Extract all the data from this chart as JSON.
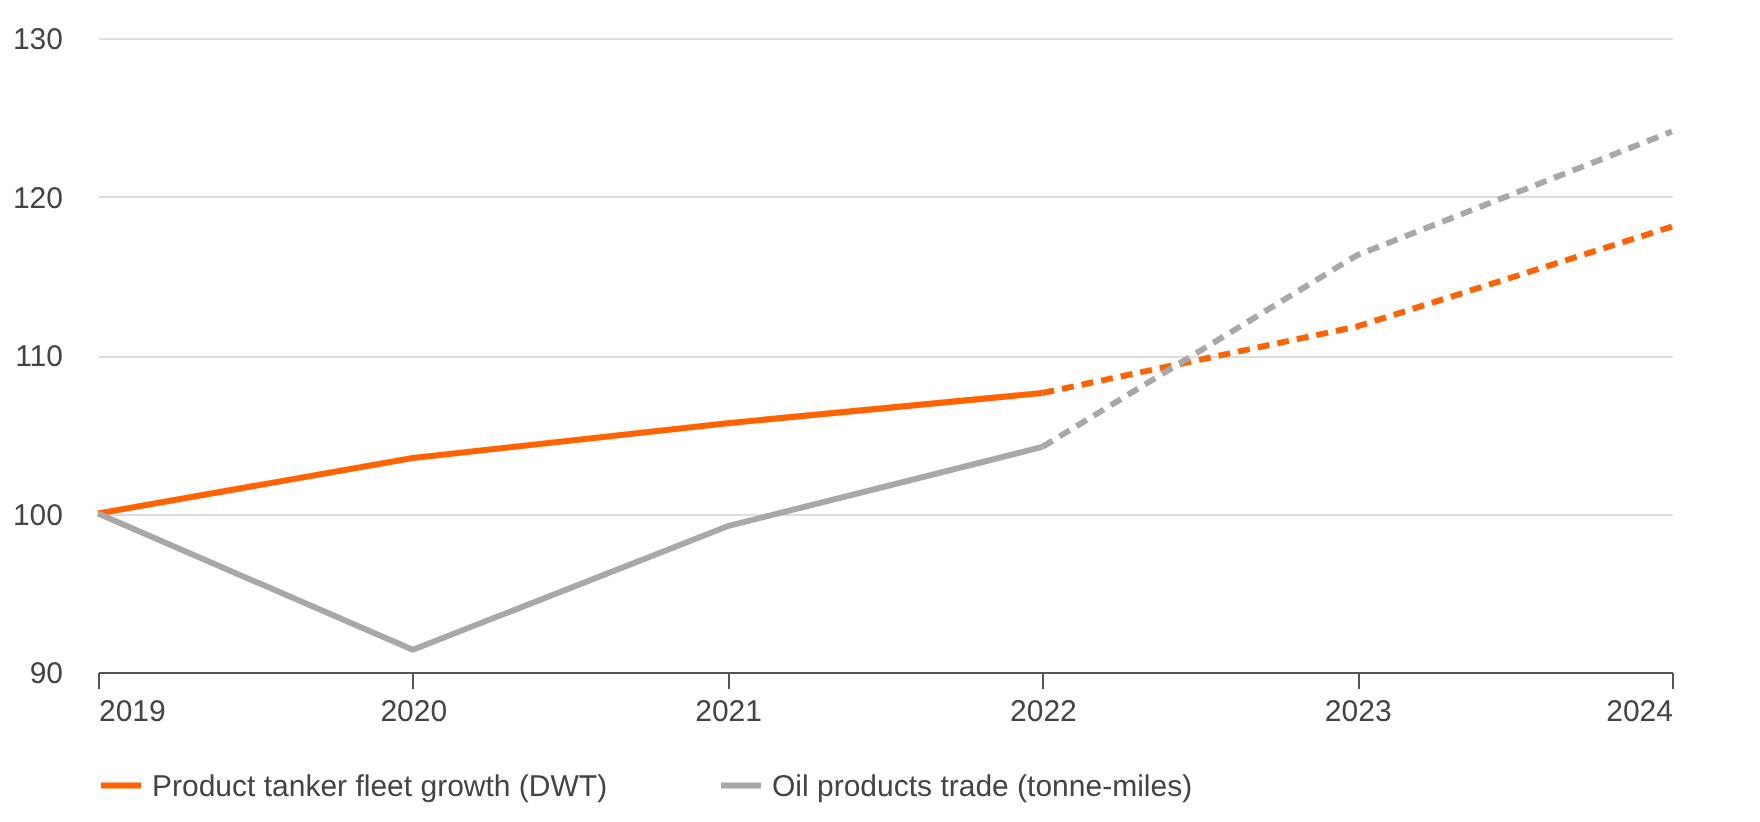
{
  "chart_data": {
    "type": "line",
    "x": [
      2019,
      2020,
      2021,
      2022,
      2023,
      2024
    ],
    "series": [
      {
        "name": "Product tanker fleet growth (DWT)",
        "color": "#ff6200",
        "values": [
          100,
          103.5,
          105.7,
          107.6,
          null,
          null
        ],
        "line_style": "solid"
      },
      {
        "color": "#ff6200",
        "values": [
          null,
          null,
          null,
          107.6,
          111.8,
          118.1
        ],
        "line_style": "dashed"
      },
      {
        "name": "Oil products trade (tonne-miles)",
        "color": "#a8a8a8",
        "values": [
          100,
          91.4,
          99.2,
          104.2,
          null,
          null
        ],
        "line_style": "solid"
      },
      {
        "color": "#a8a8a8",
        "values": [
          null,
          null,
          null,
          104.2,
          116.3,
          124.1
        ],
        "line_style": "dashed"
      }
    ],
    "xlim": [
      2019,
      2024
    ],
    "xticks": [
      2019,
      2020,
      2021,
      2022,
      2023,
      2024
    ],
    "ylim": [
      90,
      130
    ],
    "yticks": [
      90,
      100,
      110,
      120,
      130
    ],
    "grid": "y",
    "legend": "bottom",
    "marker": "none"
  }
}
